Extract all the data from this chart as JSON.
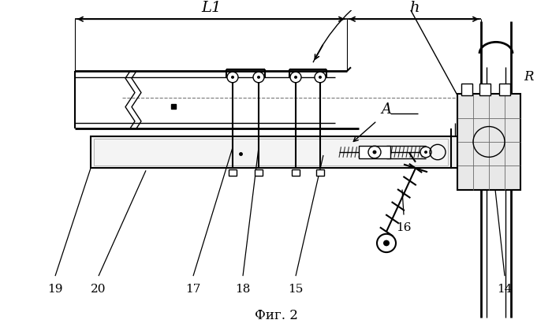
{
  "background_color": "#ffffff",
  "caption_text": "Фиг. 2",
  "caption_fontsize": 12,
  "L1_label": "L1",
  "h_label": "h",
  "A_label": "A",
  "R_label": "R",
  "numbers": [
    "14",
    "15",
    "16",
    "17",
    "18",
    "19",
    "20"
  ]
}
